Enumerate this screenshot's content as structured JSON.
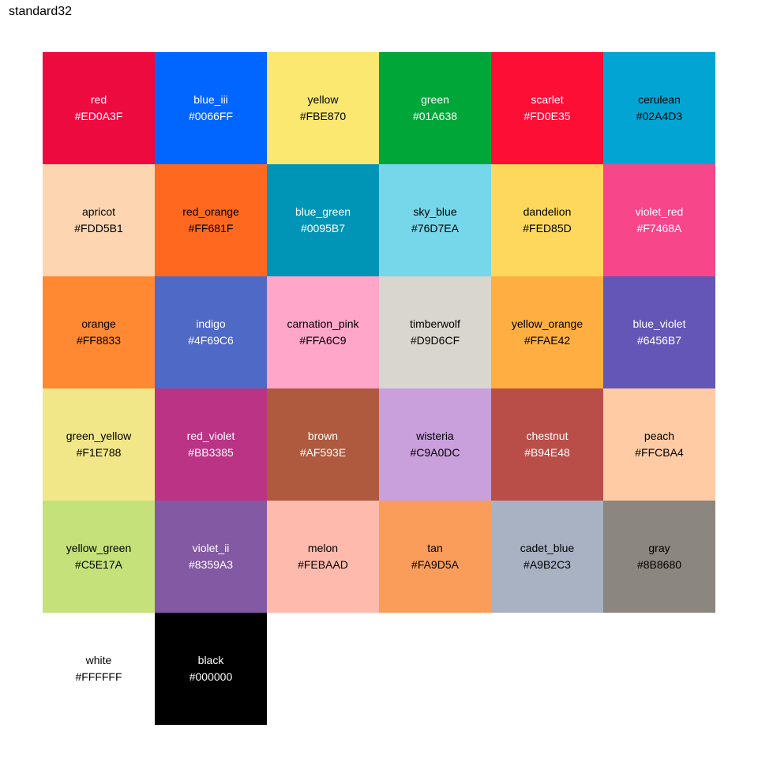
{
  "chart_data": {
    "type": "table",
    "title": "standard32",
    "columns": 6,
    "swatches": [
      {
        "name": "red",
        "hex": "#ED0A3F",
        "text": "#FFFFFF"
      },
      {
        "name": "blue_iii",
        "hex": "#0066FF",
        "text": "#FFFFFF"
      },
      {
        "name": "yellow",
        "hex": "#FBE870",
        "text": "#000000"
      },
      {
        "name": "green",
        "hex": "#01A638",
        "text": "#FFFFFF"
      },
      {
        "name": "scarlet",
        "hex": "#FD0E35",
        "text": "#FFFFFF"
      },
      {
        "name": "cerulean",
        "hex": "#02A4D3",
        "text": "#000000"
      },
      {
        "name": "apricot",
        "hex": "#FDD5B1",
        "text": "#000000"
      },
      {
        "name": "red_orange",
        "hex": "#FF681F",
        "text": "#000000"
      },
      {
        "name": "blue_green",
        "hex": "#0095B7",
        "text": "#FFFFFF"
      },
      {
        "name": "sky_blue",
        "hex": "#76D7EA",
        "text": "#000000"
      },
      {
        "name": "dandelion",
        "hex": "#FED85D",
        "text": "#000000"
      },
      {
        "name": "violet_red",
        "hex": "#F7468A",
        "text": "#FFFFFF"
      },
      {
        "name": "orange",
        "hex": "#FF8833",
        "text": "#000000"
      },
      {
        "name": "indigo",
        "hex": "#4F69C6",
        "text": "#FFFFFF"
      },
      {
        "name": "carnation_pink",
        "hex": "#FFA6C9",
        "text": "#000000"
      },
      {
        "name": "timberwolf",
        "hex": "#D9D6CF",
        "text": "#000000"
      },
      {
        "name": "yellow_orange",
        "hex": "#FFAE42",
        "text": "#000000"
      },
      {
        "name": "blue_violet",
        "hex": "#6456B7",
        "text": "#FFFFFF"
      },
      {
        "name": "green_yellow",
        "hex": "#F1E788",
        "text": "#000000"
      },
      {
        "name": "red_violet",
        "hex": "#BB3385",
        "text": "#FFFFFF"
      },
      {
        "name": "brown",
        "hex": "#AF593E",
        "text": "#FFFFFF"
      },
      {
        "name": "wisteria",
        "hex": "#C9A0DC",
        "text": "#000000"
      },
      {
        "name": "chestnut",
        "hex": "#B94E48",
        "text": "#FFFFFF"
      },
      {
        "name": "peach",
        "hex": "#FFCBA4",
        "text": "#000000"
      },
      {
        "name": "yellow_green",
        "hex": "#C5E17A",
        "text": "#000000"
      },
      {
        "name": "violet_ii",
        "hex": "#8359A3",
        "text": "#FFFFFF"
      },
      {
        "name": "melon",
        "hex": "#FEBAAD",
        "text": "#000000"
      },
      {
        "name": "tan",
        "hex": "#FA9D5A",
        "text": "#000000"
      },
      {
        "name": "cadet_blue",
        "hex": "#A9B2C3",
        "text": "#000000"
      },
      {
        "name": "gray",
        "hex": "#8B8680",
        "text": "#000000"
      },
      {
        "name": "white",
        "hex": "#FFFFFF",
        "text": "#000000"
      },
      {
        "name": "black",
        "hex": "#000000",
        "text": "#FFFFFF"
      }
    ]
  }
}
